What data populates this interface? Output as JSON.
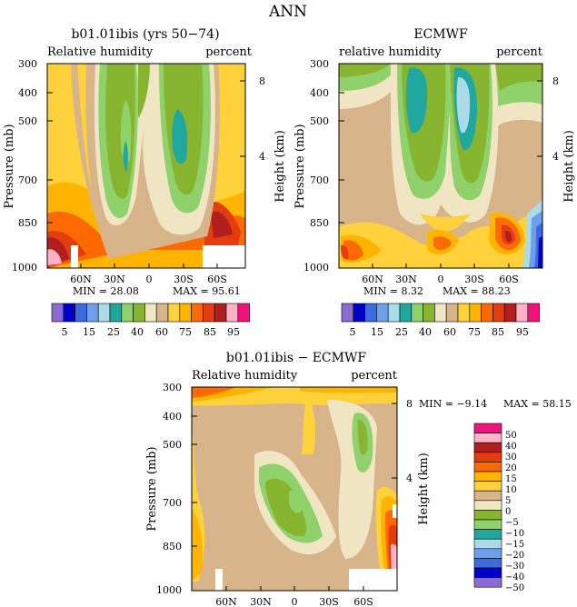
{
  "figure_title": "ANN",
  "colors": {
    "rh": [
      "#8b6bd1",
      "#0000c8",
      "#3a6be0",
      "#6e9fe8",
      "#a9dce8",
      "#1fa7a0",
      "#8fd16b",
      "#88b52f",
      "#f1e6c4",
      "#d7b48a",
      "#ffd23c",
      "#ffb400",
      "#ff6a00",
      "#e23c0f",
      "#b01e1e",
      "#ffb2c6",
      "#f2127d"
    ],
    "diff": [
      "#8b6bd1",
      "#0000c8",
      "#3a6be0",
      "#6e9fe8",
      "#a9dce8",
      "#1fa7a0",
      "#8fd16b",
      "#88b52f",
      "#f1e6c4",
      "#d7b48a",
      "#ffd23c",
      "#ffb400",
      "#ff6a00",
      "#e23c0f",
      "#b01e1e",
      "#ffb2c6",
      "#f2127d"
    ]
  },
  "panels": [
    {
      "title": "b01.01ibis (yrs 50−74)",
      "left_label": "Relative humidity",
      "right_label": "percent",
      "min_text": "MIN =   28.08",
      "max_text": "MAX =   95.61"
    },
    {
      "title": "ECMWF",
      "left_label": "relative humidity",
      "right_label": "percent",
      "min_text": "MIN =    8.32",
      "max_text": "MAX =   88.23"
    },
    {
      "title": "b01.01ibis − ECMWF",
      "left_label": "Relative humidity",
      "right_label": "percent",
      "min_text": "MIN =   −9.14",
      "max_text": "MAX =   58.15"
    }
  ],
  "axes": {
    "ylabel": "Pressure (mb)",
    "y2label": "Height (km)",
    "pressure_ticks": [
      "300",
      "400",
      "500",
      "700",
      "850",
      "1000"
    ],
    "height_ticks": [
      "8",
      "4"
    ],
    "lat_ticks": [
      "60N",
      "30N",
      "0",
      "30S",
      "60S"
    ]
  },
  "colorbar_rh_labels": [
    "5",
    "15",
    "25",
    "40",
    "60",
    "75",
    "85",
    "95"
  ],
  "colorbar_diff_labels": [
    "50",
    "40",
    "30",
    "20",
    "15",
    "10",
    "5",
    "0",
    "−5",
    "−10",
    "−15",
    "−20",
    "−30",
    "−40",
    "−50"
  ],
  "chart_data": [
    {
      "type": "heatmap",
      "title": "b01.01ibis (yrs 50−74)",
      "subtitle": "Relative humidity",
      "units": "percent",
      "xlabel": "",
      "ylabel": "Pressure (mb)",
      "y2label": "Height (km)",
      "x_ticks": [
        "60N",
        "30N",
        "0",
        "30S",
        "60S"
      ],
      "y_ticks": [
        300,
        400,
        500,
        700,
        850,
        1000
      ],
      "y2_ticks": [
        8,
        4
      ],
      "y_scale": "log",
      "min": 28.08,
      "max": 95.61,
      "contour_levels": [
        5,
        10,
        15,
        20,
        25,
        30,
        35,
        40,
        50,
        60,
        70,
        75,
        80,
        85,
        90,
        95
      ]
    },
    {
      "type": "heatmap",
      "title": "ECMWF",
      "subtitle": "relative humidity",
      "units": "percent",
      "xlabel": "",
      "ylabel": "Pressure (mb)",
      "y2label": "Height (km)",
      "x_ticks": [
        "60N",
        "30N",
        "0",
        "30S",
        "60S"
      ],
      "y_ticks": [
        300,
        400,
        500,
        700,
        850,
        1000
      ],
      "y2_ticks": [
        8,
        4
      ],
      "y_scale": "log",
      "min": 8.32,
      "max": 88.23,
      "contour_levels": [
        5,
        10,
        15,
        20,
        25,
        30,
        35,
        40,
        50,
        60,
        70,
        75,
        80,
        85,
        90,
        95
      ]
    },
    {
      "type": "heatmap",
      "title": "b01.01ibis − ECMWF",
      "subtitle": "Relative humidity",
      "units": "percent",
      "xlabel": "",
      "ylabel": "Pressure (mb)",
      "y2label": "Height (km)",
      "x_ticks": [
        "60N",
        "30N",
        "0",
        "30S",
        "60S"
      ],
      "y_ticks": [
        300,
        400,
        500,
        700,
        850,
        1000
      ],
      "y2_ticks": [
        8,
        4
      ],
      "y_scale": "log",
      "min": -9.14,
      "max": 58.15,
      "contour_levels": [
        -50,
        -40,
        -30,
        -20,
        -15,
        -10,
        -5,
        0,
        5,
        10,
        15,
        20,
        30,
        40,
        50
      ]
    }
  ]
}
